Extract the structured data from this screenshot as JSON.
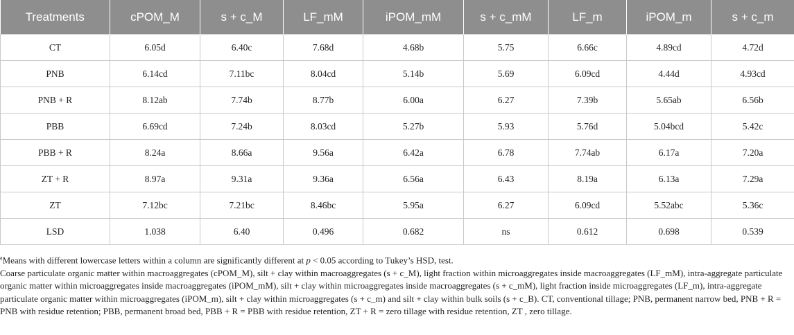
{
  "table": {
    "header": [
      "Treatments",
      "cPOM_M",
      "s + c_M",
      "LF_mM",
      "iPOM_mM",
      "s + c_mM",
      "LF_m",
      "iPOM_m",
      "s + c_m"
    ],
    "rows": [
      [
        "CT",
        "6.05d",
        "6.40c",
        "7.68d",
        "4.68b",
        "5.75",
        "6.66c",
        "4.89cd",
        "4.72d"
      ],
      [
        "PNB",
        "6.14cd",
        "7.11bc",
        "8.04cd",
        "5.14b",
        "5.69",
        "6.09cd",
        "4.44d",
        "4.93cd"
      ],
      [
        "PNB + R",
        "8.12ab",
        "7.74b",
        "8.77b",
        "6.00a",
        "6.27",
        "7.39b",
        "5.65ab",
        "6.56b"
      ],
      [
        "PBB",
        "6.69cd",
        "7.24b",
        "8.03cd",
        "5.27b",
        "5.93",
        "5.76d",
        "5.04bcd",
        "5.42c"
      ],
      [
        "PBB + R",
        "8.24a",
        "8.66a",
        "9.56a",
        "6.42a",
        "6.78",
        "7.74ab",
        "6.17a",
        "7.20a"
      ],
      [
        "ZT + R",
        "8.97a",
        "9.31a",
        "9.36a",
        "6.56a",
        "6.43",
        "8.19a",
        "6.13a",
        "7.29a"
      ],
      [
        "ZT",
        "7.12bc",
        "7.21bc",
        "8.46bc",
        "5.95a",
        "6.27",
        "6.09cd",
        "5.52abc",
        "5.36c"
      ],
      [
        "LSD",
        "1.038",
        "6.40",
        "0.496",
        "0.682",
        "ns",
        "0.612",
        "0.698",
        "0.539"
      ]
    ]
  },
  "footnotes": [
    {
      "marker": "a",
      "text_before": "Means with different lowercase letters within a column are significantly different at ",
      "italic": "p",
      "text_after": " < 0.05 according to Tukey’s HSD, test."
    },
    {
      "text": "Coarse particulate organic matter within macroaggregates (cPOM_M), silt + clay within macroaggregates (s + c_M), light fraction within microaggregates inside macroaggregates (LF_mM), intra-aggregate particulate organic matter within microaggregates inside macroaggregates (iPOM_mM), silt + clay within microaggregates inside macroaggregates (s + c_mM), light fraction inside microaggregates (LF_m), intra-aggregate particulate organic matter within microaggregates (iPOM_m), silt + clay within microaggregates (s + c_m) and silt + clay within bulk soils (s + c_B). CT, conventional tillage; PNB, permanent narrow bed, PNB + R = PNB with residue retention; PBB, permanent broad bed, PBB + R = PBB with residue retention, ZT + R = zero tillage with residue retention, ZT , zero tillage."
    }
  ]
}
